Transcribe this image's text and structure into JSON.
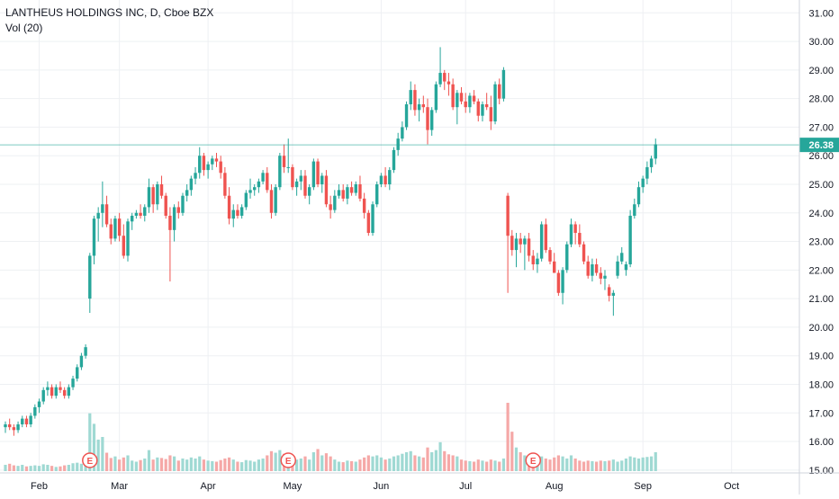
{
  "header": {
    "symbol_line": "LANTHEUS HOLDINGS INC, D, Cboe BZX",
    "volume_line": "Vol (20)"
  },
  "colors": {
    "up": "#26a69a",
    "down": "#ef5350",
    "vol_up": "#9fd9d3",
    "vol_down": "#f5a8a7",
    "last_price": "#26a69a",
    "grid": "#eef0f3",
    "axis_text": "#131722",
    "earnings_badge": "#ef5350"
  },
  "chart_data": {
    "type": "candlestick",
    "last_price": "26.38",
    "y_ticks": [
      "31.00",
      "30.00",
      "29.00",
      "28.00",
      "27.00",
      "26.00",
      "25.00",
      "24.00",
      "23.00",
      "22.00",
      "21.00",
      "20.00",
      "19.00",
      "18.00",
      "17.00",
      "16.00",
      "15.00"
    ],
    "ylim": [
      14.9,
      31.45
    ],
    "x_ticks": [
      {
        "label": "Feb",
        "i": 8
      },
      {
        "label": "Mar",
        "i": 27
      },
      {
        "label": "Apr",
        "i": 48
      },
      {
        "label": "May",
        "i": 68
      },
      {
        "label": "Jun",
        "i": 89
      },
      {
        "label": "Jul",
        "i": 109
      },
      {
        "label": "Aug",
        "i": 130
      },
      {
        "label": "Sep",
        "i": 151
      },
      {
        "label": "Oct",
        "i": 172
      }
    ],
    "earnings_markers": [
      {
        "label": "E",
        "i": 20
      },
      {
        "label": "E",
        "i": 67
      },
      {
        "label": "E",
        "i": 125
      }
    ],
    "candles": [
      [
        16.5,
        16.7,
        16.3,
        16.6,
        0.12
      ],
      [
        16.6,
        16.8,
        16.4,
        16.5,
        0.14
      ],
      [
        16.5,
        16.6,
        16.2,
        16.4,
        0.11
      ],
      [
        16.4,
        16.7,
        16.3,
        16.6,
        0.1
      ],
      [
        16.6,
        16.9,
        16.5,
        16.8,
        0.12
      ],
      [
        16.8,
        16.9,
        16.5,
        16.6,
        0.09
      ],
      [
        16.6,
        17.0,
        16.5,
        16.9,
        0.1
      ],
      [
        16.9,
        17.3,
        16.8,
        17.2,
        0.11
      ],
      [
        17.2,
        17.5,
        17.0,
        17.4,
        0.1
      ],
      [
        17.4,
        17.9,
        17.3,
        17.8,
        0.13
      ],
      [
        17.8,
        18.1,
        17.6,
        17.9,
        0.12
      ],
      [
        17.9,
        18.0,
        17.5,
        17.6,
        0.1
      ],
      [
        17.6,
        18.0,
        17.5,
        17.9,
        0.08
      ],
      [
        17.9,
        18.1,
        17.7,
        17.8,
        0.09
      ],
      [
        17.8,
        17.9,
        17.5,
        17.6,
        0.11
      ],
      [
        17.6,
        18.0,
        17.5,
        17.9,
        0.12
      ],
      [
        17.9,
        18.3,
        17.8,
        18.2,
        0.15
      ],
      [
        18.2,
        18.7,
        18.1,
        18.6,
        0.16
      ],
      [
        18.6,
        19.1,
        18.5,
        19.0,
        0.14
      ],
      [
        19.0,
        19.4,
        18.9,
        19.3,
        0.18
      ],
      [
        21.0,
        22.6,
        20.5,
        22.5,
        1.1
      ],
      [
        22.5,
        23.9,
        22.2,
        23.8,
        0.9
      ],
      [
        23.8,
        24.2,
        23.0,
        24.0,
        0.6
      ],
      [
        24.0,
        25.1,
        23.5,
        24.3,
        0.65
      ],
      [
        24.3,
        24.6,
        23.5,
        23.6,
        0.35
      ],
      [
        23.6,
        23.8,
        22.9,
        23.1,
        0.25
      ],
      [
        23.1,
        23.9,
        23.0,
        23.8,
        0.28
      ],
      [
        23.8,
        24.0,
        23.0,
        23.2,
        0.22
      ],
      [
        23.2,
        23.6,
        22.4,
        22.5,
        0.26
      ],
      [
        22.5,
        23.8,
        22.3,
        23.7,
        0.3
      ],
      [
        23.7,
        24.0,
        23.4,
        23.9,
        0.2
      ],
      [
        23.9,
        24.1,
        23.8,
        24.0,
        0.18
      ],
      [
        24.0,
        24.3,
        23.8,
        23.9,
        0.21
      ],
      [
        23.9,
        24.3,
        23.7,
        24.2,
        0.24
      ],
      [
        24.2,
        25.2,
        24.0,
        24.9,
        0.4
      ],
      [
        24.9,
        25.0,
        24.0,
        24.3,
        0.22
      ],
      [
        24.3,
        25.1,
        24.1,
        25.0,
        0.26
      ],
      [
        25.0,
        25.3,
        24.5,
        24.6,
        0.25
      ],
      [
        24.6,
        24.7,
        23.8,
        23.9,
        0.23
      ],
      [
        23.9,
        24.2,
        21.6,
        23.4,
        0.3
      ],
      [
        23.4,
        24.3,
        23.0,
        24.2,
        0.28
      ],
      [
        24.2,
        24.4,
        23.8,
        24.0,
        0.2
      ],
      [
        24.0,
        24.7,
        23.9,
        24.6,
        0.24
      ],
      [
        24.6,
        25.0,
        24.4,
        24.8,
        0.22
      ],
      [
        24.8,
        25.3,
        24.6,
        25.2,
        0.26
      ],
      [
        25.2,
        25.6,
        25.0,
        25.4,
        0.24
      ],
      [
        25.4,
        26.3,
        25.2,
        26.0,
        0.28
      ],
      [
        26.0,
        26.1,
        25.3,
        25.5,
        0.22
      ],
      [
        25.5,
        25.8,
        25.2,
        25.7,
        0.2
      ],
      [
        25.7,
        26.0,
        25.5,
        25.9,
        0.19
      ],
      [
        25.9,
        26.1,
        25.6,
        25.8,
        0.18
      ],
      [
        25.8,
        26.0,
        25.2,
        25.4,
        0.21
      ],
      [
        25.4,
        25.6,
        24.5,
        24.6,
        0.24
      ],
      [
        24.6,
        24.9,
        23.6,
        23.8,
        0.26
      ],
      [
        23.8,
        24.3,
        23.5,
        24.1,
        0.22
      ],
      [
        24.1,
        24.3,
        23.8,
        23.9,
        0.18
      ],
      [
        23.9,
        24.3,
        23.8,
        24.2,
        0.17
      ],
      [
        24.2,
        24.8,
        24.1,
        24.7,
        0.21
      ],
      [
        24.7,
        25.2,
        24.5,
        24.8,
        0.2
      ],
      [
        24.8,
        25.0,
        24.6,
        24.9,
        0.18
      ],
      [
        24.9,
        25.2,
        24.7,
        25.1,
        0.22
      ],
      [
        25.1,
        25.5,
        25.0,
        25.4,
        0.24
      ],
      [
        25.4,
        25.6,
        24.7,
        24.8,
        0.3
      ],
      [
        24.8,
        25.0,
        23.8,
        24.0,
        0.38
      ],
      [
        24.0,
        25.0,
        23.9,
        24.9,
        0.35
      ],
      [
        24.9,
        26.1,
        24.8,
        26.0,
        0.4
      ],
      [
        26.0,
        26.4,
        25.4,
        25.6,
        0.33
      ],
      [
        25.6,
        26.6,
        25.4,
        25.6,
        0.28
      ],
      [
        25.6,
        25.7,
        24.8,
        24.9,
        0.24
      ],
      [
        24.9,
        25.2,
        24.6,
        25.1,
        0.22
      ],
      [
        25.1,
        25.5,
        24.8,
        25.3,
        0.24
      ],
      [
        25.3,
        25.5,
        24.5,
        24.6,
        0.28
      ],
      [
        24.6,
        25.0,
        24.3,
        24.9,
        0.22
      ],
      [
        24.9,
        25.9,
        24.8,
        25.8,
        0.36
      ],
      [
        25.8,
        25.9,
        24.9,
        25.0,
        0.42
      ],
      [
        25.0,
        25.4,
        24.7,
        25.3,
        0.3
      ],
      [
        25.3,
        25.5,
        24.2,
        24.3,
        0.34
      ],
      [
        24.3,
        24.6,
        23.8,
        24.1,
        0.28
      ],
      [
        24.1,
        24.8,
        24.0,
        24.6,
        0.22
      ],
      [
        24.6,
        25.0,
        24.5,
        24.8,
        0.18
      ],
      [
        24.8,
        25.0,
        24.4,
        24.5,
        0.17
      ],
      [
        24.5,
        25.0,
        24.3,
        24.9,
        0.2
      ],
      [
        24.9,
        25.1,
        24.6,
        24.7,
        0.19
      ],
      [
        24.7,
        25.1,
        24.6,
        25.0,
        0.18
      ],
      [
        25.0,
        25.3,
        24.4,
        24.5,
        0.22
      ],
      [
        24.5,
        24.7,
        23.8,
        24.0,
        0.26
      ],
      [
        24.0,
        24.1,
        23.2,
        23.3,
        0.3
      ],
      [
        23.3,
        24.4,
        23.2,
        24.3,
        0.28
      ],
      [
        24.3,
        25.1,
        24.2,
        25.0,
        0.3
      ],
      [
        25.0,
        25.4,
        24.9,
        25.3,
        0.26
      ],
      [
        25.3,
        25.6,
        24.9,
        25.0,
        0.22
      ],
      [
        25.0,
        25.6,
        24.8,
        25.5,
        0.24
      ],
      [
        25.5,
        26.3,
        25.4,
        26.2,
        0.28
      ],
      [
        26.2,
        26.8,
        26.0,
        26.6,
        0.3
      ],
      [
        26.6,
        27.2,
        26.5,
        27.0,
        0.33
      ],
      [
        27.0,
        27.9,
        26.9,
        27.8,
        0.36
      ],
      [
        27.8,
        28.6,
        27.6,
        28.3,
        0.38
      ],
      [
        28.3,
        28.5,
        27.4,
        27.6,
        0.3
      ],
      [
        27.6,
        28.0,
        27.2,
        27.8,
        0.28
      ],
      [
        27.8,
        28.1,
        27.5,
        27.7,
        0.26
      ],
      [
        27.7,
        28.0,
        26.4,
        26.9,
        0.45
      ],
      [
        26.9,
        27.7,
        26.7,
        27.6,
        0.36
      ],
      [
        27.6,
        28.6,
        27.5,
        28.5,
        0.4
      ],
      [
        28.5,
        29.8,
        28.4,
        28.9,
        0.55
      ],
      [
        28.9,
        29.0,
        28.3,
        28.6,
        0.38
      ],
      [
        28.6,
        28.9,
        28.1,
        28.5,
        0.32
      ],
      [
        28.5,
        28.7,
        27.6,
        27.7,
        0.3
      ],
      [
        27.7,
        28.3,
        27.1,
        28.2,
        0.28
      ],
      [
        28.2,
        28.4,
        27.8,
        27.9,
        0.22
      ],
      [
        27.9,
        28.2,
        27.5,
        27.7,
        0.2
      ],
      [
        27.7,
        28.2,
        27.5,
        28.1,
        0.19
      ],
      [
        28.1,
        28.3,
        27.8,
        27.9,
        0.18
      ],
      [
        27.9,
        28.0,
        27.2,
        27.4,
        0.22
      ],
      [
        27.4,
        27.9,
        27.2,
        27.8,
        0.2
      ],
      [
        27.8,
        28.2,
        27.6,
        27.7,
        0.18
      ],
      [
        27.7,
        28.1,
        26.9,
        27.2,
        0.22
      ],
      [
        27.2,
        28.6,
        27.1,
        28.5,
        0.2
      ],
      [
        28.5,
        28.7,
        27.8,
        28.0,
        0.18
      ],
      [
        28.0,
        29.1,
        27.9,
        29.0,
        0.24
      ],
      [
        24.6,
        24.7,
        21.2,
        23.2,
        1.3
      ],
      [
        23.2,
        23.4,
        22.5,
        22.7,
        0.75
      ],
      [
        22.7,
        23.3,
        22.1,
        23.1,
        0.45
      ],
      [
        23.1,
        23.3,
        22.6,
        22.9,
        0.36
      ],
      [
        22.9,
        23.2,
        22.0,
        23.1,
        0.3
      ],
      [
        23.1,
        23.3,
        22.3,
        22.5,
        0.28
      ],
      [
        22.5,
        22.7,
        22.0,
        22.2,
        0.24
      ],
      [
        22.2,
        22.6,
        21.9,
        22.4,
        0.3
      ],
      [
        22.4,
        23.7,
        22.3,
        23.6,
        0.28
      ],
      [
        23.6,
        23.8,
        22.6,
        22.7,
        0.24
      ],
      [
        22.7,
        22.8,
        22.2,
        22.3,
        0.22
      ],
      [
        22.3,
        22.6,
        21.9,
        21.9,
        0.26
      ],
      [
        21.9,
        22.0,
        21.1,
        21.2,
        0.3
      ],
      [
        21.2,
        22.1,
        20.8,
        22.0,
        0.28
      ],
      [
        22.0,
        23.0,
        21.9,
        22.9,
        0.24
      ],
      [
        22.9,
        23.8,
        22.8,
        23.6,
        0.3
      ],
      [
        23.6,
        23.7,
        22.9,
        23.3,
        0.24
      ],
      [
        23.3,
        23.6,
        22.8,
        22.9,
        0.2
      ],
      [
        22.9,
        23.0,
        22.2,
        22.3,
        0.18
      ],
      [
        22.3,
        22.5,
        21.7,
        21.8,
        0.2
      ],
      [
        21.8,
        22.4,
        21.6,
        22.2,
        0.19
      ],
      [
        22.2,
        22.4,
        21.8,
        21.9,
        0.18
      ],
      [
        21.9,
        22.1,
        21.5,
        21.7,
        0.2
      ],
      [
        21.7,
        22.0,
        21.3,
        21.8,
        0.19
      ],
      [
        21.4,
        21.5,
        20.9,
        21.1,
        0.2
      ],
      [
        21.1,
        21.3,
        20.4,
        21.2,
        0.22
      ],
      [
        21.8,
        22.5,
        21.7,
        22.3,
        0.18
      ],
      [
        22.3,
        22.8,
        22.2,
        22.6,
        0.2
      ],
      [
        22.0,
        22.3,
        21.8,
        22.2,
        0.24
      ],
      [
        22.2,
        24.1,
        22.1,
        23.9,
        0.28
      ],
      [
        23.9,
        24.5,
        23.8,
        24.3,
        0.26
      ],
      [
        24.3,
        25.1,
        24.2,
        24.9,
        0.24
      ],
      [
        24.9,
        25.3,
        24.7,
        25.2,
        0.26
      ],
      [
        25.2,
        25.8,
        25.0,
        25.6,
        0.27
      ],
      [
        25.6,
        26.0,
        25.4,
        25.9,
        0.28
      ],
      [
        25.9,
        26.6,
        25.7,
        26.4,
        0.36
      ]
    ]
  }
}
